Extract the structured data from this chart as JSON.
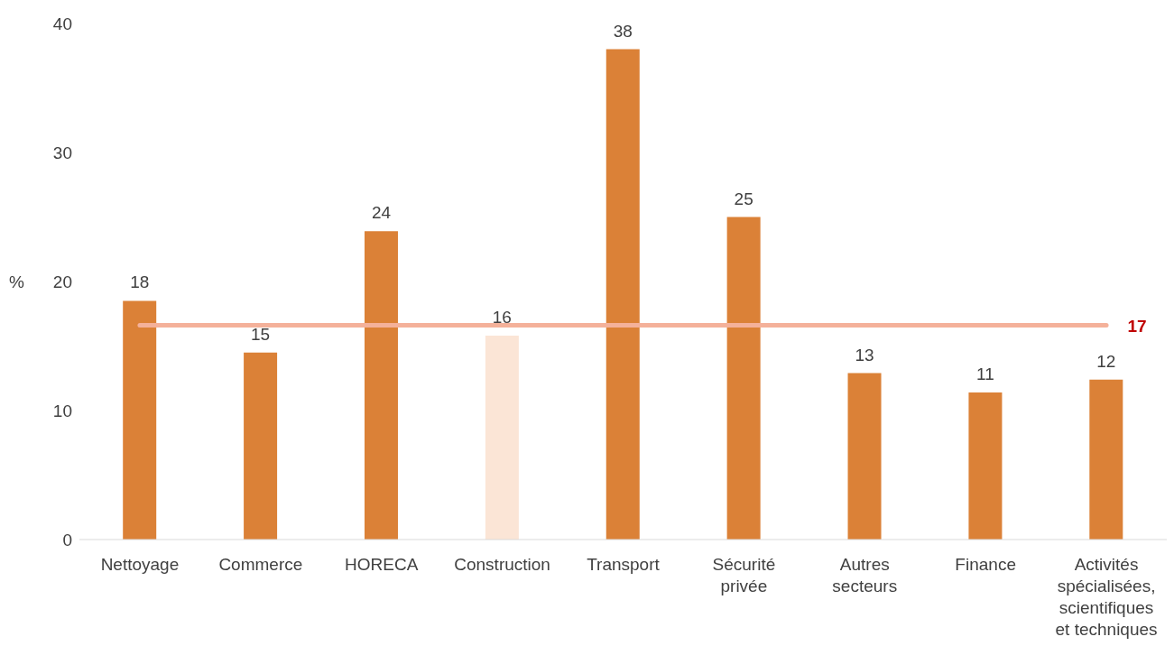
{
  "chart_data": {
    "type": "bar",
    "ylabel": "%",
    "categories": [
      "Nettoyage",
      "Commerce",
      "HORECA",
      "Construction",
      "Transport",
      "Sécurité privée",
      "Autres secteurs",
      "Finance",
      "Activités spécialisées, scientifiques et techniques"
    ],
    "values": [
      18.5,
      14.5,
      23.9,
      15.8,
      38,
      25,
      12.9,
      11.4,
      12.4
    ],
    "value_labels": [
      "18",
      "15",
      "24",
      "16",
      "38",
      "25",
      "13",
      "11",
      "12"
    ],
    "colors": [
      "#db8137",
      "#db8137",
      "#db8137",
      "#fbe5d6",
      "#db8137",
      "#db8137",
      "#db8137",
      "#db8137",
      "#db8137"
    ],
    "ylim": [
      0,
      40
    ],
    "yticks": [
      0,
      10,
      20,
      30,
      40
    ],
    "grid": false,
    "legend": false,
    "ref_lines": [
      {
        "axis": "y",
        "value": 16.6,
        "label": "17",
        "color": "#f4b19a"
      }
    ]
  }
}
